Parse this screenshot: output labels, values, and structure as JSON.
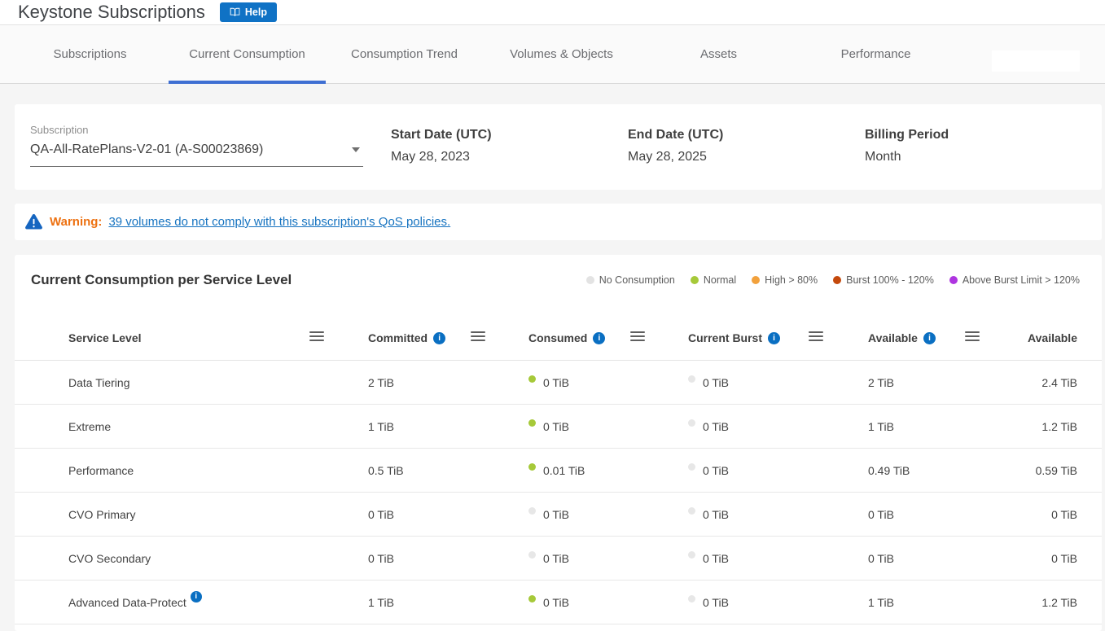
{
  "app": {
    "title": "Keystone Subscriptions",
    "help_button": "Help"
  },
  "tabs": [
    {
      "label": "Subscriptions",
      "active": false
    },
    {
      "label": "Current Consumption",
      "active": true
    },
    {
      "label": "Consumption Trend",
      "active": false
    },
    {
      "label": "Volumes & Objects",
      "active": false
    },
    {
      "label": "Assets",
      "active": false
    },
    {
      "label": "Performance",
      "active": false
    }
  ],
  "filters": {
    "subscription_label": "Subscription",
    "subscription_value": "QA-All-RatePlans-V2-01 (A-S00023869)",
    "details": [
      {
        "label": "Start Date (UTC)",
        "value": "May 28, 2023"
      },
      {
        "label": "End Date (UTC)",
        "value": "May 28, 2025"
      },
      {
        "label": "Billing Period",
        "value": "Month"
      }
    ]
  },
  "warning": {
    "label": "Warning:",
    "link_text": "39 volumes do not comply with this subscription's QoS policies."
  },
  "panel": {
    "title": "Current Consumption per Service Level",
    "legend": [
      {
        "label": "No Consumption",
        "color": "#e3e3e3"
      },
      {
        "label": "Normal",
        "color": "#a6c939"
      },
      {
        "label": "High > 80%",
        "color": "#f2a13c"
      },
      {
        "label": "Burst 100% - 120%",
        "color": "#c4490c"
      },
      {
        "label": "Above Burst Limit > 120%",
        "color": "#ae35e0"
      }
    ],
    "status_colors": {
      "normal": "#a6c939",
      "none": "#e7e7e7"
    },
    "columns": [
      {
        "label": "Service Level",
        "info": false
      },
      {
        "label": "Committed",
        "info": true
      },
      {
        "label": "Consumed",
        "info": true
      },
      {
        "label": "Current Burst",
        "info": true
      },
      {
        "label": "Available",
        "info": true
      },
      {
        "label": "Available",
        "info": false
      }
    ],
    "rows": [
      {
        "service_level": "Data Tiering",
        "info": false,
        "committed": "2 TiB",
        "consumed": {
          "value": "0 TiB",
          "status": "normal"
        },
        "current_burst": {
          "value": "0 TiB",
          "status": "none"
        },
        "available": "2 TiB",
        "available_with_burst": "2.4 TiB"
      },
      {
        "service_level": "Extreme",
        "info": false,
        "committed": "1 TiB",
        "consumed": {
          "value": "0 TiB",
          "status": "normal"
        },
        "current_burst": {
          "value": "0 TiB",
          "status": "none"
        },
        "available": "1 TiB",
        "available_with_burst": "1.2 TiB"
      },
      {
        "service_level": "Performance",
        "info": false,
        "committed": "0.5 TiB",
        "consumed": {
          "value": "0.01 TiB",
          "status": "normal"
        },
        "current_burst": {
          "value": "0 TiB",
          "status": "none"
        },
        "available": "0.49 TiB",
        "available_with_burst": "0.59 TiB"
      },
      {
        "service_level": "CVO Primary",
        "info": false,
        "committed": "0 TiB",
        "consumed": {
          "value": "0 TiB",
          "status": "none"
        },
        "current_burst": {
          "value": "0 TiB",
          "status": "none"
        },
        "available": "0 TiB",
        "available_with_burst": "0 TiB"
      },
      {
        "service_level": "CVO Secondary",
        "info": false,
        "committed": "0 TiB",
        "consumed": {
          "value": "0 TiB",
          "status": "none"
        },
        "current_burst": {
          "value": "0 TiB",
          "status": "none"
        },
        "available": "0 TiB",
        "available_with_burst": "0 TiB"
      },
      {
        "service_level": "Advanced Data-Protect",
        "info": true,
        "committed": "1 TiB",
        "consumed": {
          "value": "0 TiB",
          "status": "normal"
        },
        "current_burst": {
          "value": "0 TiB",
          "status": "none"
        },
        "available": "1 TiB",
        "available_with_burst": "1.2 TiB"
      }
    ]
  }
}
